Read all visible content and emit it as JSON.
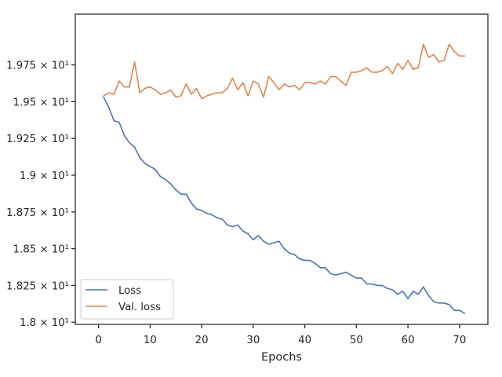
{
  "chart_data": {
    "type": "line",
    "title": "",
    "xlabel": "Epochs",
    "ylabel": "",
    "xlim": [
      -4.5,
      75.5
    ],
    "ylim": [
      17.985,
      20.095
    ],
    "x_ticks": [
      0,
      10,
      20,
      30,
      40,
      50,
      60,
      70
    ],
    "y_ticks": [
      {
        "value": 18.0,
        "label": "1.8 × 10¹"
      },
      {
        "value": 18.25,
        "label": "1.825 × 10¹"
      },
      {
        "value": 18.5,
        "label": "1.85 × 10¹"
      },
      {
        "value": 18.75,
        "label": "1.875 × 10¹"
      },
      {
        "value": 19.0,
        "label": "1.9 × 10¹"
      },
      {
        "value": 19.25,
        "label": "1.925 × 10¹"
      },
      {
        "value": 19.5,
        "label": "1.95 × 10¹"
      },
      {
        "value": 19.75,
        "label": "1.975 × 10¹"
      }
    ],
    "legend": "lower-left",
    "grid": false,
    "series": [
      {
        "name": "Loss",
        "color": "#4c72b0",
        "x": [
          1,
          2,
          3,
          4,
          5,
          6,
          7,
          8,
          9,
          10,
          11,
          12,
          13,
          14,
          15,
          16,
          17,
          18,
          19,
          20,
          21,
          22,
          23,
          24,
          25,
          26,
          27,
          28,
          29,
          30,
          31,
          32,
          33,
          34,
          35,
          36,
          37,
          38,
          39,
          40,
          41,
          42,
          43,
          44,
          45,
          46,
          47,
          48,
          49,
          50,
          51,
          52,
          53,
          54,
          55,
          56,
          57,
          58,
          59,
          60,
          61,
          62,
          63,
          64,
          65,
          66,
          67,
          68,
          69,
          70,
          71
        ],
        "values": [
          19.53,
          19.46,
          19.37,
          19.36,
          19.27,
          19.22,
          19.19,
          19.12,
          19.08,
          19.06,
          19.04,
          18.99,
          18.97,
          18.94,
          18.9,
          18.87,
          18.87,
          18.81,
          18.77,
          18.76,
          18.74,
          18.73,
          18.71,
          18.7,
          18.66,
          18.65,
          18.66,
          18.62,
          18.6,
          18.56,
          18.59,
          18.55,
          18.53,
          18.54,
          18.55,
          18.5,
          18.47,
          18.46,
          18.43,
          18.42,
          18.42,
          18.4,
          18.37,
          18.37,
          18.33,
          18.32,
          18.33,
          18.34,
          18.32,
          18.3,
          18.3,
          18.26,
          18.26,
          18.25,
          18.25,
          18.23,
          18.22,
          18.19,
          18.21,
          18.16,
          18.21,
          18.19,
          18.24,
          18.18,
          18.14,
          18.13,
          18.13,
          18.12,
          18.08,
          18.08,
          18.06
        ]
      },
      {
        "name": "Val. loss",
        "color": "#dd8452",
        "x": [
          1,
          2,
          3,
          4,
          5,
          6,
          7,
          8,
          9,
          10,
          11,
          12,
          13,
          14,
          15,
          16,
          17,
          18,
          19,
          20,
          21,
          22,
          23,
          24,
          25,
          26,
          27,
          28,
          29,
          30,
          31,
          32,
          33,
          34,
          35,
          36,
          37,
          38,
          39,
          40,
          41,
          42,
          43,
          44,
          45,
          46,
          47,
          48,
          49,
          50,
          51,
          52,
          53,
          54,
          55,
          56,
          57,
          58,
          59,
          60,
          61,
          62,
          63,
          64,
          65,
          66,
          67,
          68,
          69,
          70,
          71
        ],
        "values": [
          19.54,
          19.56,
          19.55,
          19.64,
          19.6,
          19.6,
          19.77,
          19.56,
          19.59,
          19.6,
          19.58,
          19.55,
          19.56,
          19.58,
          19.53,
          19.54,
          19.62,
          19.55,
          19.59,
          19.52,
          19.54,
          19.55,
          19.56,
          19.56,
          19.59,
          19.66,
          19.58,
          19.63,
          19.54,
          19.64,
          19.62,
          19.53,
          19.67,
          19.63,
          19.58,
          19.62,
          19.6,
          19.61,
          19.58,
          19.63,
          19.63,
          19.62,
          19.64,
          19.62,
          19.67,
          19.67,
          19.64,
          19.61,
          19.7,
          19.7,
          19.71,
          19.73,
          19.7,
          19.7,
          19.71,
          19.74,
          19.69,
          19.76,
          19.72,
          19.78,
          19.72,
          19.73,
          19.89,
          19.8,
          19.82,
          19.77,
          19.78,
          19.89,
          19.84,
          19.81,
          19.81
        ]
      }
    ]
  }
}
